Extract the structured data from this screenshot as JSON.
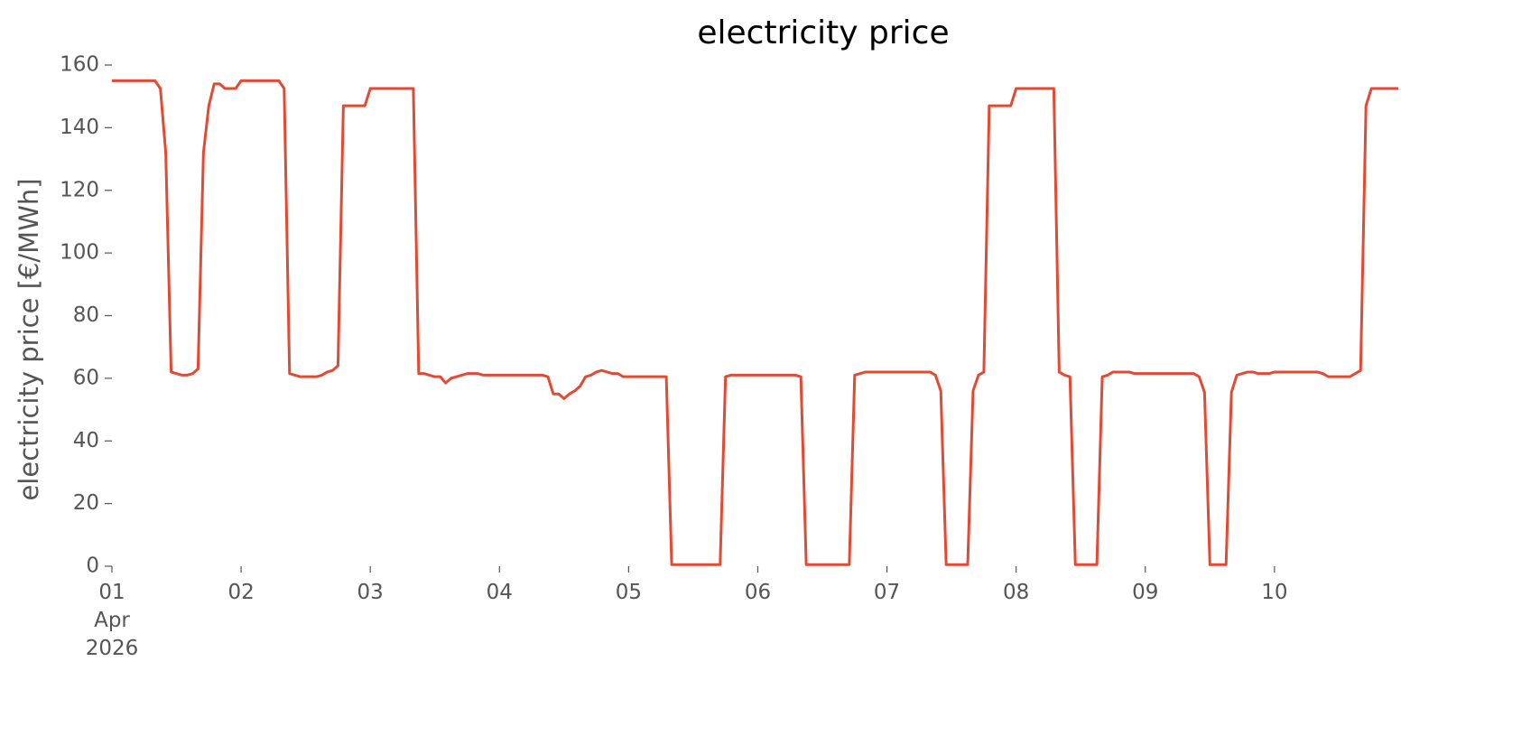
{
  "chart_data": {
    "type": "line",
    "title": "electricity price",
    "ylabel": "electricity price [€/MWh]",
    "x": [
      0,
      8,
      9,
      10,
      11,
      12,
      13,
      14,
      15,
      16,
      17,
      18,
      19,
      20,
      21,
      23,
      24,
      31,
      32,
      33,
      34,
      35,
      38,
      39,
      40,
      41,
      42,
      43,
      47,
      48,
      56,
      57,
      58,
      59,
      60,
      61,
      62,
      63,
      64,
      65,
      66,
      68,
      69,
      80,
      81,
      82,
      83,
      84,
      85,
      86,
      87,
      88,
      89,
      90,
      91,
      92,
      93,
      94,
      95,
      103,
      104,
      113,
      114,
      115,
      127,
      128,
      129,
      137,
      138,
      139,
      140,
      152,
      153,
      154,
      155,
      159,
      160,
      161,
      162,
      163,
      167,
      168,
      175,
      176,
      177,
      178,
      179,
      183,
      184,
      185,
      186,
      189,
      190,
      201,
      202,
      203,
      204,
      207,
      208,
      209,
      210,
      211,
      212,
      213,
      215,
      216,
      224,
      225,
      226,
      230,
      231,
      232,
      233,
      234,
      239
    ],
    "series": [
      {
        "name": "electricity price",
        "color": "#e24a33",
        "values": [
          155,
          155,
          152.5,
          132,
          62,
          61.5,
          61,
          61,
          61.5,
          63,
          132,
          147,
          154,
          154,
          152.5,
          152.5,
          155,
          155,
          152.5,
          61.5,
          61,
          60.5,
          60.5,
          61,
          62,
          62.5,
          64,
          147,
          147,
          152.5,
          152.5,
          61.5,
          61.5,
          61,
          60.5,
          60.5,
          58.5,
          60,
          60.5,
          61,
          61.5,
          61.5,
          61,
          61,
          60.5,
          55,
          55,
          53.5,
          55,
          56,
          57.5,
          60.5,
          61,
          62,
          62.5,
          62,
          61.5,
          61.5,
          60.5,
          60.5,
          0.5,
          0.5,
          60.5,
          61,
          61,
          60.5,
          0.5,
          0.5,
          61,
          61.5,
          62,
          62,
          61,
          56,
          0.5,
          0.5,
          56,
          61,
          62,
          147,
          147,
          152.5,
          152.5,
          62,
          61,
          60.5,
          0.5,
          0.5,
          60.5,
          61,
          62,
          62,
          61.5,
          61.5,
          60.5,
          55.5,
          0.5,
          0.5,
          55.5,
          61,
          61.5,
          62,
          62,
          61.5,
          61.5,
          62,
          62,
          61.5,
          60.5,
          60.5,
          61.5,
          62.5,
          147,
          152.5,
          152.5
        ]
      }
    ],
    "xlim": [
      0,
      239
    ],
    "xticks": [
      {
        "value": 0,
        "label": "01\nApr\n2026"
      },
      {
        "value": 24,
        "label": "02"
      },
      {
        "value": 48,
        "label": "03"
      },
      {
        "value": 72,
        "label": "04"
      },
      {
        "value": 96,
        "label": "05"
      },
      {
        "value": 120,
        "label": "06"
      },
      {
        "value": 144,
        "label": "07"
      },
      {
        "value": 168,
        "label": "08"
      },
      {
        "value": 192,
        "label": "09"
      },
      {
        "value": 216,
        "label": "10"
      }
    ],
    "ylim": [
      0,
      160
    ],
    "yticks": [
      0,
      20,
      40,
      60,
      80,
      100,
      120,
      140,
      160
    ],
    "grid": false
  }
}
